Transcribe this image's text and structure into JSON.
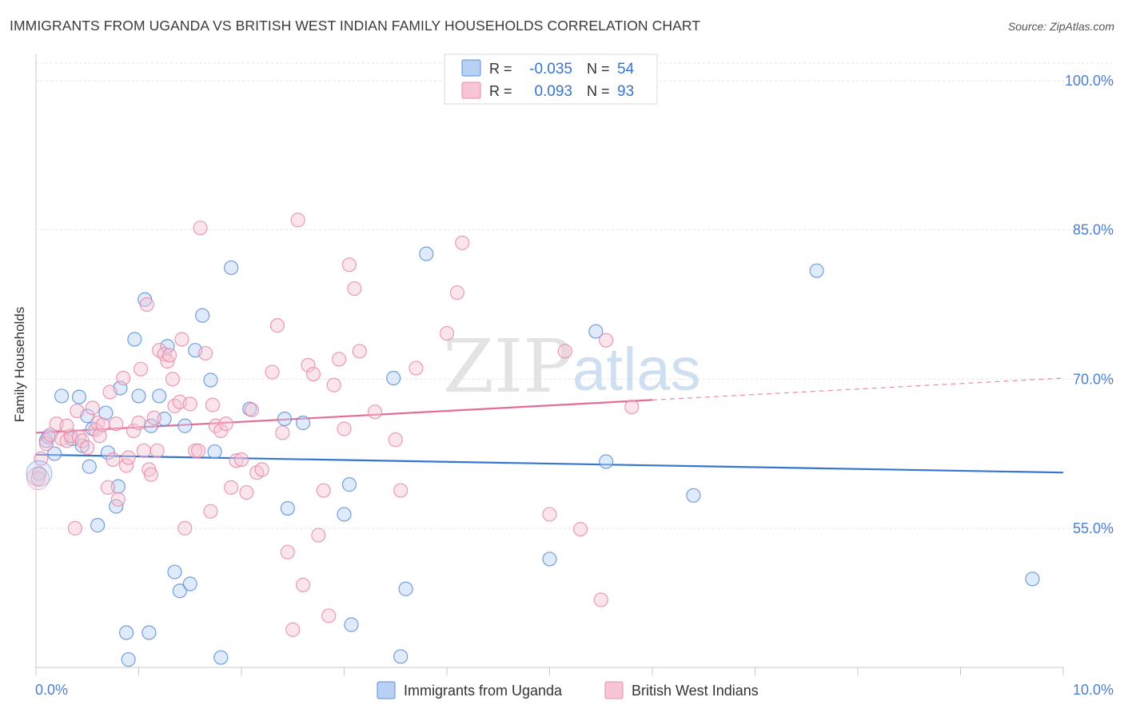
{
  "title": "IMMIGRANTS FROM UGANDA VS BRITISH WEST INDIAN FAMILY HOUSEHOLDS CORRELATION CHART",
  "source": "Source: ZipAtlas.com",
  "watermark": {
    "zip": "ZIP",
    "atlas": "atlas"
  },
  "colors": {
    "blue_fill": "#b7d0f4",
    "blue_stroke": "#5b8fd9",
    "blue_line": "#3575d0",
    "pink_fill": "#f7c5d5",
    "pink_stroke": "#e88aa8",
    "pink_line": "#e46d96",
    "tick_label": "#4a7fd0"
  },
  "stats": {
    "rows": [
      {
        "r_label": "R =",
        "r_value": "-0.035",
        "n_label": "N =",
        "n_value": "54"
      },
      {
        "r_label": "R =",
        "r_value": "0.093",
        "n_label": "N =",
        "n_value": "93"
      }
    ]
  },
  "chart_data": {
    "type": "scatter",
    "xlabel": "",
    "ylabel": "Family Households",
    "xlim": [
      0,
      10
    ],
    "ylim": [
      41,
      102.5
    ],
    "x_tick_labels": [
      "0.0%",
      "10.0%"
    ],
    "y_ticks": [
      55,
      70,
      85,
      100
    ],
    "y_tick_labels": [
      "55.0%",
      "70.0%",
      "85.0%",
      "100.0%"
    ],
    "grid": true,
    "legend_position": "bottom",
    "series": [
      {
        "name": "Immigrants from Uganda",
        "color": "#5b8fd9",
        "trend": {
          "x": [
            0,
            10
          ],
          "y": [
            62.4,
            60.6
          ],
          "solid_until": 10
        },
        "points": [
          [
            0.03,
            60.5
          ],
          [
            0.1,
            63.8
          ],
          [
            0.12,
            64.2
          ],
          [
            0.18,
            62.5
          ],
          [
            0.25,
            68.3
          ],
          [
            0.35,
            64.0
          ],
          [
            0.42,
            68.2
          ],
          [
            0.45,
            63.3
          ],
          [
            0.5,
            66.3
          ],
          [
            0.52,
            61.2
          ],
          [
            0.55,
            65.0
          ],
          [
            0.6,
            55.3
          ],
          [
            0.68,
            66.6
          ],
          [
            0.7,
            62.6
          ],
          [
            0.78,
            57.2
          ],
          [
            0.82,
            69.1
          ],
          [
            0.88,
            44.5
          ],
          [
            0.9,
            41.8
          ],
          [
            0.96,
            74.0
          ],
          [
            1.0,
            68.3
          ],
          [
            1.06,
            78.0
          ],
          [
            1.1,
            44.5
          ],
          [
            1.12,
            65.3
          ],
          [
            1.2,
            68.3
          ],
          [
            1.25,
            66.0
          ],
          [
            1.28,
            73.3
          ],
          [
            1.35,
            50.6
          ],
          [
            1.4,
            48.7
          ],
          [
            1.45,
            65.3
          ],
          [
            1.5,
            49.4
          ],
          [
            1.55,
            72.9
          ],
          [
            1.62,
            76.4
          ],
          [
            1.7,
            69.9
          ],
          [
            1.74,
            62.7
          ],
          [
            1.8,
            42.0
          ],
          [
            1.9,
            81.2
          ],
          [
            2.08,
            67.0
          ],
          [
            2.42,
            66.0
          ],
          [
            2.45,
            57.0
          ],
          [
            2.6,
            65.6
          ],
          [
            3.0,
            56.4
          ],
          [
            3.05,
            59.4
          ],
          [
            3.07,
            45.3
          ],
          [
            3.48,
            70.1
          ],
          [
            3.55,
            42.1
          ],
          [
            3.6,
            48.9
          ],
          [
            3.8,
            82.6
          ],
          [
            5.0,
            51.9
          ],
          [
            5.45,
            74.8
          ],
          [
            5.55,
            61.7
          ],
          [
            6.4,
            58.3
          ],
          [
            7.6,
            80.9
          ],
          [
            9.7,
            49.9
          ],
          [
            0.8,
            59.2
          ]
        ]
      },
      {
        "name": "British West Indians",
        "color": "#e88aa8",
        "trend": {
          "x": [
            0,
            10
          ],
          "y": [
            64.6,
            70.1
          ],
          "solid_until": 6.0
        },
        "points": [
          [
            0.02,
            60.0
          ],
          [
            0.05,
            62.0
          ],
          [
            0.1,
            63.5
          ],
          [
            0.14,
            64.4
          ],
          [
            0.2,
            65.5
          ],
          [
            0.25,
            64.0
          ],
          [
            0.3,
            63.8
          ],
          [
            0.34,
            64.3
          ],
          [
            0.38,
            55.0
          ],
          [
            0.4,
            66.8
          ],
          [
            0.42,
            64.2
          ],
          [
            0.45,
            63.8
          ],
          [
            0.5,
            63.1
          ],
          [
            0.55,
            67.1
          ],
          [
            0.58,
            64.9
          ],
          [
            0.6,
            65.6
          ],
          [
            0.62,
            64.3
          ],
          [
            0.65,
            65.4
          ],
          [
            0.7,
            59.1
          ],
          [
            0.72,
            68.7
          ],
          [
            0.75,
            61.9
          ],
          [
            0.78,
            65.5
          ],
          [
            0.8,
            57.9
          ],
          [
            0.85,
            70.1
          ],
          [
            0.88,
            61.3
          ],
          [
            0.9,
            62.1
          ],
          [
            0.95,
            64.8
          ],
          [
            1.0,
            65.6
          ],
          [
            1.02,
            71.0
          ],
          [
            1.05,
            62.8
          ],
          [
            1.08,
            77.5
          ],
          [
            1.1,
            60.9
          ],
          [
            1.12,
            60.4
          ],
          [
            1.15,
            66.1
          ],
          [
            1.18,
            62.8
          ],
          [
            1.2,
            72.9
          ],
          [
            1.25,
            72.5
          ],
          [
            1.28,
            71.8
          ],
          [
            1.3,
            72.4
          ],
          [
            1.33,
            70.0
          ],
          [
            1.35,
            67.3
          ],
          [
            1.4,
            67.7
          ],
          [
            1.42,
            74.0
          ],
          [
            1.45,
            55.0
          ],
          [
            1.5,
            67.5
          ],
          [
            1.55,
            62.8
          ],
          [
            1.58,
            62.8
          ],
          [
            1.6,
            85.2
          ],
          [
            1.65,
            72.6
          ],
          [
            1.7,
            56.7
          ],
          [
            1.72,
            67.4
          ],
          [
            1.75,
            65.3
          ],
          [
            1.8,
            64.8
          ],
          [
            1.85,
            65.5
          ],
          [
            1.9,
            59.1
          ],
          [
            1.95,
            61.8
          ],
          [
            2.0,
            61.9
          ],
          [
            2.05,
            58.6
          ],
          [
            2.1,
            66.9
          ],
          [
            2.15,
            60.6
          ],
          [
            2.2,
            60.9
          ],
          [
            2.3,
            70.7
          ],
          [
            2.35,
            75.4
          ],
          [
            2.4,
            64.6
          ],
          [
            2.45,
            52.6
          ],
          [
            2.5,
            44.8
          ],
          [
            2.55,
            86.0
          ],
          [
            2.6,
            49.3
          ],
          [
            2.65,
            71.4
          ],
          [
            2.7,
            70.5
          ],
          [
            2.75,
            54.3
          ],
          [
            2.8,
            58.8
          ],
          [
            2.85,
            46.2
          ],
          [
            2.9,
            69.4
          ],
          [
            2.95,
            72.0
          ],
          [
            3.0,
            65.0
          ],
          [
            3.05,
            81.5
          ],
          [
            3.1,
            79.1
          ],
          [
            3.15,
            72.8
          ],
          [
            3.3,
            66.7
          ],
          [
            3.5,
            63.9
          ],
          [
            3.55,
            58.8
          ],
          [
            3.7,
            71.1
          ],
          [
            4.0,
            74.6
          ],
          [
            4.1,
            78.7
          ],
          [
            4.15,
            83.7
          ],
          [
            5.0,
            56.4
          ],
          [
            5.15,
            72.8
          ],
          [
            5.3,
            54.9
          ],
          [
            5.5,
            47.8
          ],
          [
            5.55,
            73.9
          ],
          [
            5.8,
            67.2
          ],
          [
            0.3,
            65.3
          ]
        ]
      }
    ]
  }
}
